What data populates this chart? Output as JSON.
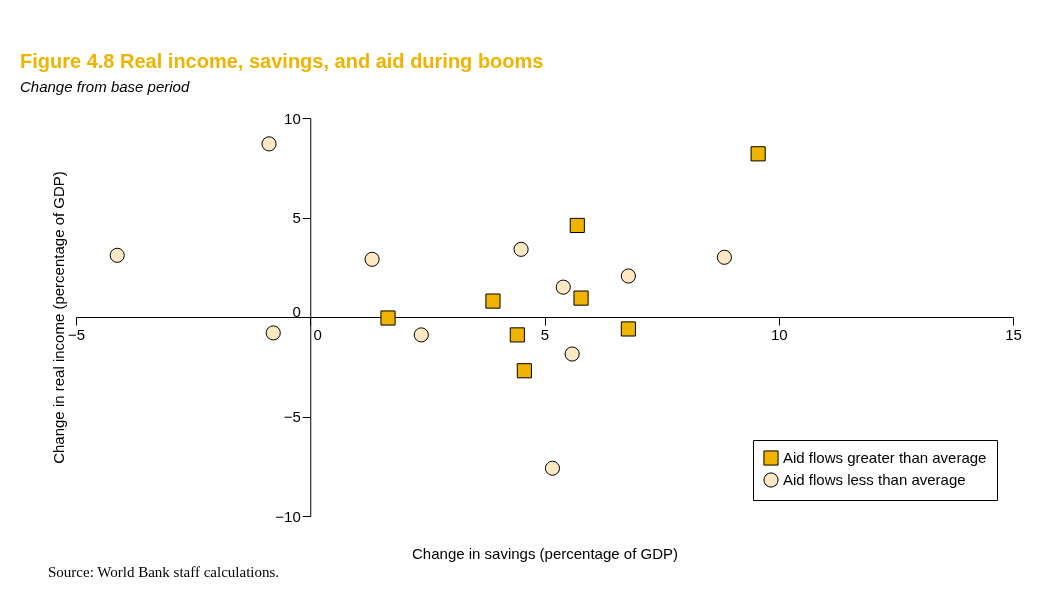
{
  "chart_data": {
    "type": "scatter",
    "title": "Figure 4.8  Real income, savings, and aid during booms",
    "subtitle": "Change from base period",
    "xlabel": "Change in savings (percentage of GDP)",
    "ylabel": "Change in real income (percentage of GDP)",
    "annotations": [
      "Source: World Bank staff calculations."
    ],
    "xlim": [
      -5,
      15
    ],
    "xticks": [
      -5,
      0,
      5,
      10,
      15
    ],
    "ylim": [
      -10,
      10
    ],
    "yticks": [
      -10,
      -5,
      0,
      5,
      10
    ],
    "grid": false,
    "legend": "bottom right",
    "series": [
      {
        "name": "Aid flows greater than average",
        "color": "#f0b400",
        "marker": "square",
        "x": [
          1.66,
          3.9,
          4.42,
          4.57,
          5.7,
          5.78,
          6.79,
          9.56
        ],
        "values": [
          -0.05,
          0.8,
          -0.9,
          -2.7,
          4.6,
          0.95,
          -0.6,
          8.2
        ]
      },
      {
        "name": "Aid flows less than average",
        "color": "#fde8c4",
        "marker": "circle",
        "x": [
          -4.12,
          -0.88,
          -0.79,
          1.32,
          2.37,
          4.5,
          5.4,
          5.59,
          5.17,
          6.79,
          8.84
        ],
        "values": [
          3.1,
          8.7,
          -0.8,
          2.9,
          -0.9,
          3.4,
          1.5,
          -1.86,
          -7.6,
          2.06,
          3.0
        ]
      }
    ]
  }
}
